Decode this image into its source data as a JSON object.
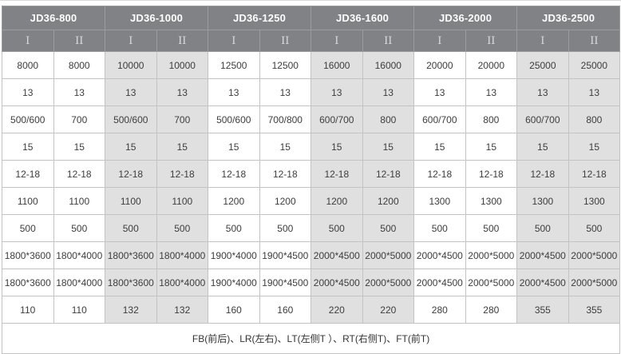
{
  "colors": {
    "header_bg": "#808285",
    "header_text": "#ffffff",
    "subheader_text": "#dcdcdc",
    "column_alt_bg": "#e0e0e0",
    "body_text": "#3d3d3d",
    "border": "#c3c3c3"
  },
  "table": {
    "groups": [
      {
        "label": "JD36-800",
        "cols": [
          "I",
          "II"
        ]
      },
      {
        "label": "JD36-1000",
        "cols": [
          "I",
          "II"
        ]
      },
      {
        "label": "JD36-1250",
        "cols": [
          "I",
          "II"
        ]
      },
      {
        "label": "JD36-1600",
        "cols": [
          "I",
          "II"
        ]
      },
      {
        "label": "JD36-2000",
        "cols": [
          "I",
          "II"
        ]
      },
      {
        "label": "JD36-2500",
        "cols": [
          "I",
          "II"
        ]
      }
    ],
    "rows": [
      [
        "8000",
        "8000",
        "10000",
        "10000",
        "12500",
        "12500",
        "16000",
        "16000",
        "20000",
        "20000",
        "25000",
        "25000"
      ],
      [
        "13",
        "13",
        "13",
        "13",
        "13",
        "13",
        "13",
        "13",
        "13",
        "13",
        "13",
        "13"
      ],
      [
        "500/600",
        "700",
        "500/600",
        "700",
        "500/600",
        "700/800",
        "600/700",
        "800",
        "600/700",
        "800",
        "600/700",
        "800"
      ],
      [
        "15",
        "15",
        "15",
        "15",
        "15",
        "15",
        "15",
        "15",
        "15",
        "15",
        "15",
        "15"
      ],
      [
        "12-18",
        "12-18",
        "12-18",
        "12-18",
        "12-18",
        "12-18",
        "12-18",
        "12-18",
        "12-18",
        "12-18",
        "12-18",
        "12-18"
      ],
      [
        "1100",
        "1100",
        "1100",
        "1100",
        "1200",
        "1200",
        "1200",
        "1200",
        "1300",
        "1300",
        "1300",
        "1300"
      ],
      [
        "500",
        "500",
        "500",
        "500",
        "500",
        "500",
        "500",
        "500",
        "500",
        "500",
        "500",
        "500"
      ],
      [
        "1800*3600",
        "1800*4000",
        "1800*3600",
        "1800*4000",
        "1900*4000",
        "1900*4500",
        "2000*4500",
        "2000*5000",
        "2000*4500",
        "2000*5000",
        "2000*4500",
        "2000*5000"
      ],
      [
        "1800*3600",
        "1800*4000",
        "1800*3600",
        "1800*4000",
        "1900*4000",
        "1900*4500",
        "2000*4500",
        "2000*5000",
        "2000*4500",
        "2000*5000",
        "2000*4500",
        "2000*5000"
      ],
      [
        "110",
        "110",
        "132",
        "132",
        "160",
        "160",
        "220",
        "220",
        "280",
        "280",
        "355",
        "355"
      ]
    ],
    "footer_note": "FB(前后)、LR(左右)、LT(左侧T ）、RT(右侧T)、FT(前T)"
  }
}
